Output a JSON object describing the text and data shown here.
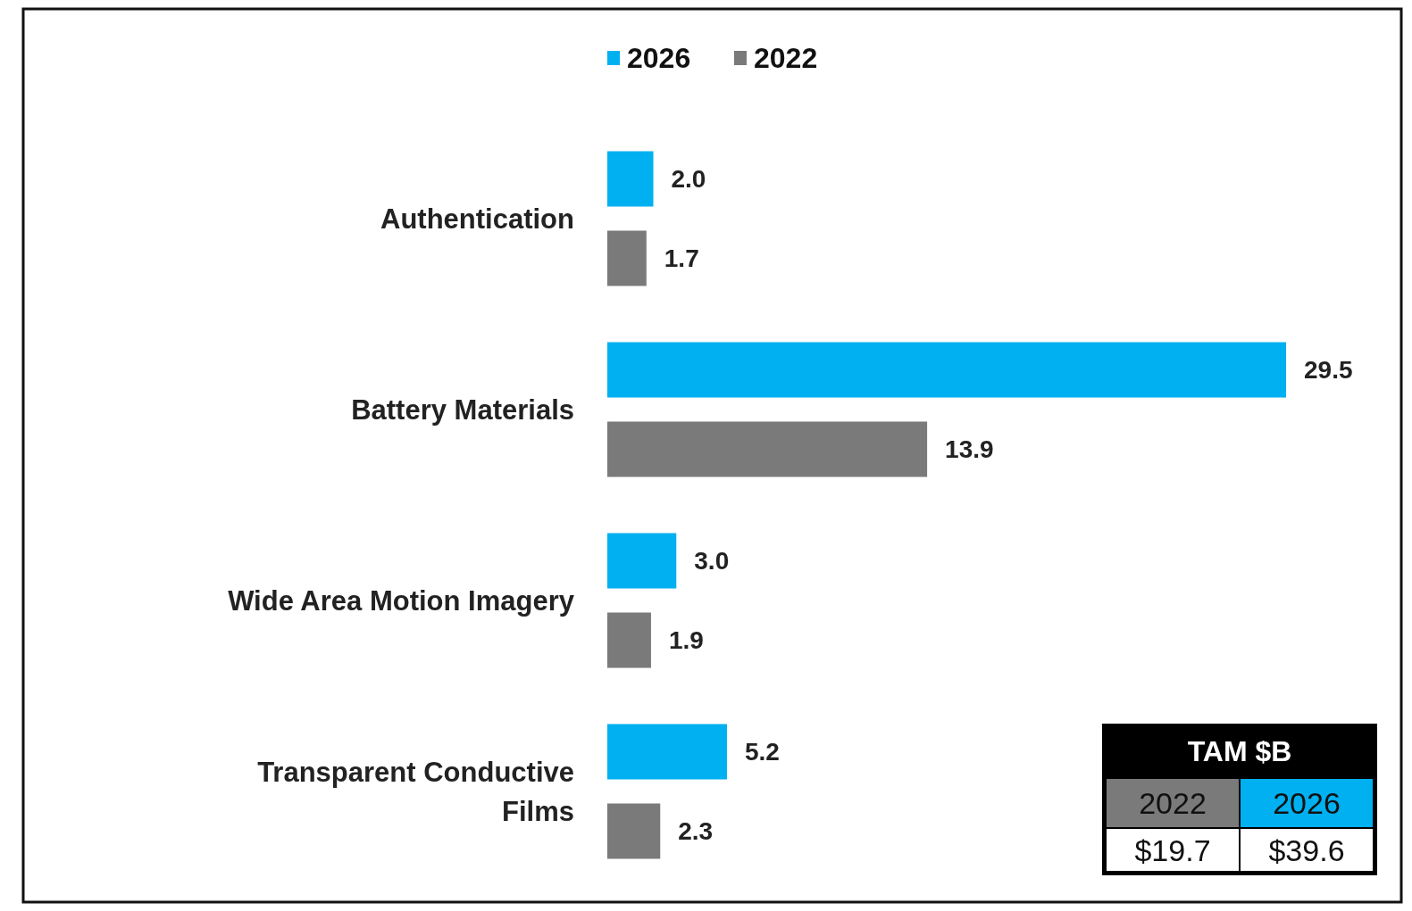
{
  "chart_data": {
    "type": "bar",
    "orientation": "horizontal",
    "categories": [
      "Authentication",
      "Battery Materials",
      "Wide Area Motion Imagery",
      "Transparent Conductive Films"
    ],
    "series": [
      {
        "name": "2026",
        "color": "#00b0f0",
        "values": [
          2.0,
          29.5,
          3.0,
          5.2
        ],
        "value_labels": [
          "2.0",
          "29.5",
          "3.0",
          "5.2"
        ]
      },
      {
        "name": "2022",
        "color": "#7a7a7a",
        "values": [
          1.7,
          13.9,
          1.9,
          2.3
        ],
        "value_labels": [
          "1.7",
          "13.9",
          "1.9",
          "2.3"
        ]
      }
    ],
    "legend": "top",
    "tick_labels": "y",
    "annotations": [
      "TAM $B",
      "2022",
      "2026",
      "$19.7",
      "$39.6"
    ]
  }
}
